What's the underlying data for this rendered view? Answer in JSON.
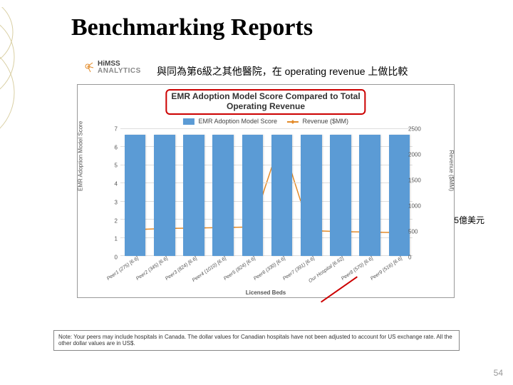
{
  "slide_title": "Benchmarking Reports",
  "logo": {
    "top": "HiMSS",
    "bottom": "ANALYTICS"
  },
  "subtitle": "與同為第6級之其他醫院，在 operating revenue 上做比較",
  "annotation_right": "5億美元",
  "chart": {
    "type": "bar+line",
    "title_line1": "EMR Adoption Model Score Compared to Total",
    "title_line2": "Operating Revenue",
    "title_fontsize": 12,
    "legend": [
      {
        "label": "EMR Adoption Model Score",
        "color": "#5b9bd5",
        "kind": "bar"
      },
      {
        "label": "Revenue ($MM)",
        "color": "#e38b2a",
        "kind": "line"
      }
    ],
    "y_left_label": "EMR Adoption Model Score",
    "y_right_label": "Revenue ($MM)",
    "x_label": "Licensed Beds",
    "background_color": "#ffffff",
    "grid_color": "#dddddd",
    "y_left": {
      "min": 0,
      "max": 7,
      "ticks": [
        0,
        1,
        2,
        3,
        4,
        5,
        6,
        7
      ]
    },
    "y_right": {
      "min": 0,
      "max": 2500,
      "ticks": [
        0,
        500,
        1000,
        1500,
        2000,
        2500
      ]
    },
    "categories": [
      "Peer1 (275) [6.6]",
      "Peer2 (345) [6.6]",
      "Peer3 (824) [6.6]",
      "Peer4 (1010) [6.6]",
      "Peer5 (824) [6.6]",
      "Peer6 (330) [6.6]",
      "Peer7 (391) [6.6]",
      "Our Hospital [6.62]",
      "Peer8 (570) [6.6]",
      "Peer9 (516) [6.6]"
    ],
    "bar_values": [
      6.6,
      6.6,
      6.6,
      6.6,
      6.6,
      6.6,
      6.6,
      6.6,
      6.6,
      6.6
    ],
    "bar_color": "#5b9bd5",
    "bar_width_ratio": 0.72,
    "line_values": [
      520,
      540,
      550,
      560,
      570,
      2300,
      500,
      480,
      470,
      460
    ],
    "line_color": "#e38b2a",
    "marker_style": "diamond",
    "marker_size": 4,
    "highlight_underline_index": 7,
    "highlight_underline_color": "#cc0000"
  },
  "note_text": "Note: Your peers may include hospitals in Canada. The dollar values for Canadian hospitals have not been adjusted to account for US exchange rate. All the other dollar values are in US$.",
  "page_number": "54",
  "colors": {
    "deco_stroke": "#d9cfa3",
    "title_box_border": "#cc0000"
  }
}
